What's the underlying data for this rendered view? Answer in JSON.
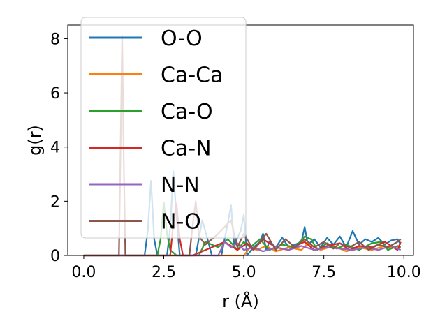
{
  "chart_data": {
    "type": "line",
    "xlabel": "r (Å)",
    "ylabel": "g(r)",
    "xlim": [
      -0.5,
      10.3
    ],
    "ylim": [
      0,
      8.5
    ],
    "xticks": [
      0.0,
      2.5,
      5.0,
      7.5,
      10.0
    ],
    "xtick_labels": [
      "0.0",
      "2.5",
      "5.0",
      "7.5",
      "10.0"
    ],
    "yticks": [
      0,
      2,
      4,
      6,
      8
    ],
    "ytick_labels": [
      "0",
      "2",
      "4",
      "6",
      "8"
    ],
    "grid": false,
    "legend_placement": "upper-left",
    "series": [
      {
        "name": "O-O",
        "color": "#1f77b4",
        "x": [
          0,
          1.9,
          2.0,
          2.1,
          2.2,
          2.3,
          2.6,
          2.7,
          2.8,
          2.9,
          3.0,
          3.5,
          3.7,
          3.8,
          4.0,
          4.3,
          4.5,
          4.6,
          4.7,
          4.9,
          5.0,
          5.1,
          5.3,
          5.5,
          5.6,
          5.7,
          5.8,
          6.0,
          6.2,
          6.4,
          6.6,
          6.8,
          6.9,
          7.0,
          7.2,
          7.4,
          7.6,
          7.8,
          8.0,
          8.2,
          8.4,
          8.6,
          8.8,
          9.0,
          9.2,
          9.4,
          9.6,
          9.8,
          9.9
        ],
        "y": [
          0,
          0,
          0.9,
          2.75,
          0.6,
          0,
          0,
          1.0,
          3.1,
          1.4,
          0,
          0,
          1.3,
          0.9,
          0,
          0,
          1.2,
          1.85,
          0.4,
          0.9,
          1.5,
          0,
          0.3,
          0.5,
          0.8,
          0.2,
          0.5,
          0.3,
          0.65,
          0.3,
          0.4,
          0.5,
          1.05,
          0.4,
          0.6,
          0.3,
          0.65,
          0.4,
          0.7,
          0.3,
          0.9,
          0.4,
          0.6,
          0.5,
          0.65,
          0.4,
          0.55,
          0.6,
          0.4
        ]
      },
      {
        "name": "Ca-Ca",
        "color": "#ff7f0e",
        "x": [
          0,
          5.0,
          5.2,
          5.4,
          5.7,
          6.0,
          6.4,
          6.8,
          7.0,
          7.4,
          7.8,
          8.2,
          8.6,
          9.0,
          9.4,
          9.8,
          9.9
        ],
        "y": [
          0,
          0,
          0.3,
          0.2,
          0.35,
          0.15,
          0.3,
          0.2,
          0.45,
          0.2,
          0.35,
          0.15,
          0.3,
          0.2,
          0.35,
          0.25,
          0.3
        ]
      },
      {
        "name": "Ca-O",
        "color": "#2ca02c",
        "x": [
          0,
          2.3,
          2.4,
          2.5,
          2.6,
          2.7,
          2.9,
          3.6,
          3.8,
          4.2,
          4.5,
          4.8,
          5.0,
          5.2,
          5.5,
          5.8,
          6.2,
          6.6,
          6.9,
          7.1,
          7.3,
          7.6,
          7.9,
          8.2,
          8.6,
          9.0,
          9.3,
          9.5,
          9.8,
          9.9
        ],
        "y": [
          0,
          0,
          0.6,
          1.95,
          0.8,
          0.2,
          0,
          0,
          0.5,
          0.3,
          0.6,
          0.2,
          0.5,
          0.3,
          0.6,
          0.2,
          0.4,
          0.3,
          0.7,
          0.6,
          0.2,
          0.45,
          0.25,
          0.4,
          0.2,
          0.45,
          0.5,
          0.2,
          0.35,
          0.3
        ]
      },
      {
        "name": "Ca-N",
        "color": "#d62728",
        "x": [
          0,
          2.7,
          2.8,
          2.9,
          3.0,
          3.1,
          3.4,
          4.0,
          4.4,
          4.8,
          5.1,
          5.3,
          5.6,
          6.0,
          6.4,
          6.8,
          6.9,
          7.2,
          7.6,
          8.0,
          8.3,
          8.6,
          9.0,
          9.4,
          9.8,
          9.9
        ],
        "y": [
          0,
          0,
          1.2,
          1.9,
          0.6,
          0,
          0,
          0.3,
          0.5,
          0.2,
          0.45,
          0.2,
          0.6,
          0.3,
          0.2,
          0.45,
          0.5,
          0.2,
          0.35,
          0.45,
          0.2,
          0.35,
          0.3,
          0.5,
          0.2,
          0.5
        ]
      },
      {
        "name": "N-N",
        "color": "#9467bd",
        "x": [
          0,
          4.2,
          4.4,
          4.6,
          4.8,
          5.0,
          5.3,
          5.6,
          6.0,
          6.4,
          6.8,
          7.2,
          7.6,
          8.0,
          8.4,
          8.8,
          9.2,
          9.6,
          9.9
        ],
        "y": [
          0,
          0,
          0.5,
          0.3,
          0.45,
          0.2,
          0.3,
          0.15,
          0.3,
          0.2,
          0.35,
          0.2,
          0.3,
          0.25,
          0.2,
          0.3,
          0.2,
          0.35,
          0.2
        ]
      },
      {
        "name": "N-O",
        "color": "#8c564b",
        "x": [
          0,
          1.1,
          1.15,
          1.2,
          1.25,
          1.3,
          3.3,
          3.4,
          3.5,
          3.6,
          3.8,
          4.2,
          4.6,
          4.8,
          5.0,
          5.3,
          5.5,
          5.7,
          6.0,
          6.3,
          6.6,
          6.8,
          6.9,
          7.2,
          7.5,
          7.8,
          8.0,
          8.3,
          8.6,
          8.9,
          9.2,
          9.5,
          9.8,
          9.9
        ],
        "y": [
          0,
          0,
          4.0,
          8.1,
          3.5,
          0,
          0,
          1.1,
          2.0,
          0.7,
          0.4,
          0.8,
          1.3,
          0.3,
          0.8,
          0.2,
          0.5,
          0.8,
          0.2,
          0.6,
          0.3,
          0.5,
          0.6,
          0.3,
          0.5,
          0.25,
          0.45,
          0.3,
          0.5,
          0.2,
          0.4,
          0.3,
          0.5,
          0.6
        ]
      }
    ]
  }
}
